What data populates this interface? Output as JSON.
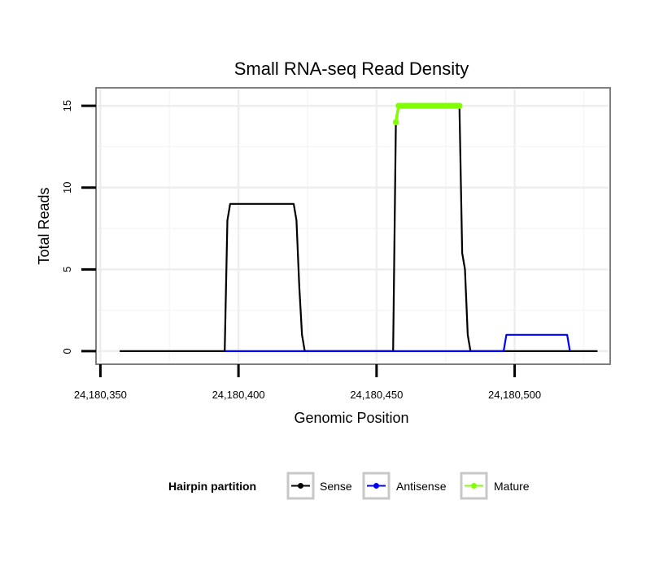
{
  "chart_data": {
    "type": "line",
    "title": "Small RNA-seq Read Density",
    "xlabel": "Genomic Position",
    "ylabel": "Total Reads",
    "xlim": [
      24180349,
      24180534
    ],
    "ylim": [
      -0.7,
      16
    ],
    "x_ticks": [
      24180350,
      24180400,
      24180450,
      24180500
    ],
    "x_tick_labels": [
      "24,180,350",
      "24,180,400",
      "24,180,450",
      "24,180,500"
    ],
    "y_ticks": [
      0,
      5,
      10,
      15
    ],
    "y_tick_labels": [
      "0",
      "5",
      "10",
      "15"
    ],
    "y_minor_ticks": [
      2.5,
      7.5,
      12.5
    ],
    "x_minor_ticks": [
      24180375,
      24180425,
      24180475,
      24180525
    ],
    "grid": true,
    "legend": {
      "title": "Hairpin partition",
      "position": "bottom",
      "entries": [
        "Sense",
        "Antisense",
        "Mature"
      ]
    },
    "series": [
      {
        "name": "Sense",
        "color": "#000000",
        "points": [
          [
            24180357,
            0
          ],
          [
            24180395,
            0
          ],
          [
            24180396,
            8
          ],
          [
            24180397,
            9
          ],
          [
            24180420,
            9
          ],
          [
            24180421,
            8
          ],
          [
            24180422,
            4
          ],
          [
            24180423,
            1
          ],
          [
            24180424,
            0
          ],
          [
            24180456,
            0
          ],
          [
            24180457,
            14
          ],
          [
            24180458,
            15
          ],
          [
            24180480,
            15
          ],
          [
            24180481,
            6
          ],
          [
            24180482,
            5
          ],
          [
            24180483,
            1
          ],
          [
            24180484,
            0
          ],
          [
            24180530,
            0
          ]
        ]
      },
      {
        "name": "Antisense",
        "color": "#0000ff",
        "points": [
          [
            24180395,
            0
          ],
          [
            24180424,
            0
          ],
          [
            24180456,
            0
          ],
          [
            24180484,
            0
          ],
          [
            24180496,
            0
          ],
          [
            24180497,
            1
          ],
          [
            24180519,
            1
          ],
          [
            24180520,
            0
          ]
        ]
      },
      {
        "name": "Mature",
        "color": "#80ff00",
        "points": [
          [
            24180457,
            14
          ],
          [
            24180458,
            15
          ],
          [
            24180459,
            15
          ],
          [
            24180460,
            15
          ],
          [
            24180461,
            15
          ],
          [
            24180462,
            15
          ],
          [
            24180463,
            15
          ],
          [
            24180464,
            15
          ],
          [
            24180465,
            15
          ],
          [
            24180466,
            15
          ],
          [
            24180467,
            15
          ],
          [
            24180468,
            15
          ],
          [
            24180469,
            15
          ],
          [
            24180470,
            15
          ],
          [
            24180471,
            15
          ],
          [
            24180472,
            15
          ],
          [
            24180473,
            15
          ],
          [
            24180474,
            15
          ],
          [
            24180475,
            15
          ],
          [
            24180476,
            15
          ],
          [
            24180477,
            15
          ],
          [
            24180478,
            15
          ],
          [
            24180479,
            15
          ],
          [
            24180480,
            15
          ]
        ]
      }
    ]
  }
}
